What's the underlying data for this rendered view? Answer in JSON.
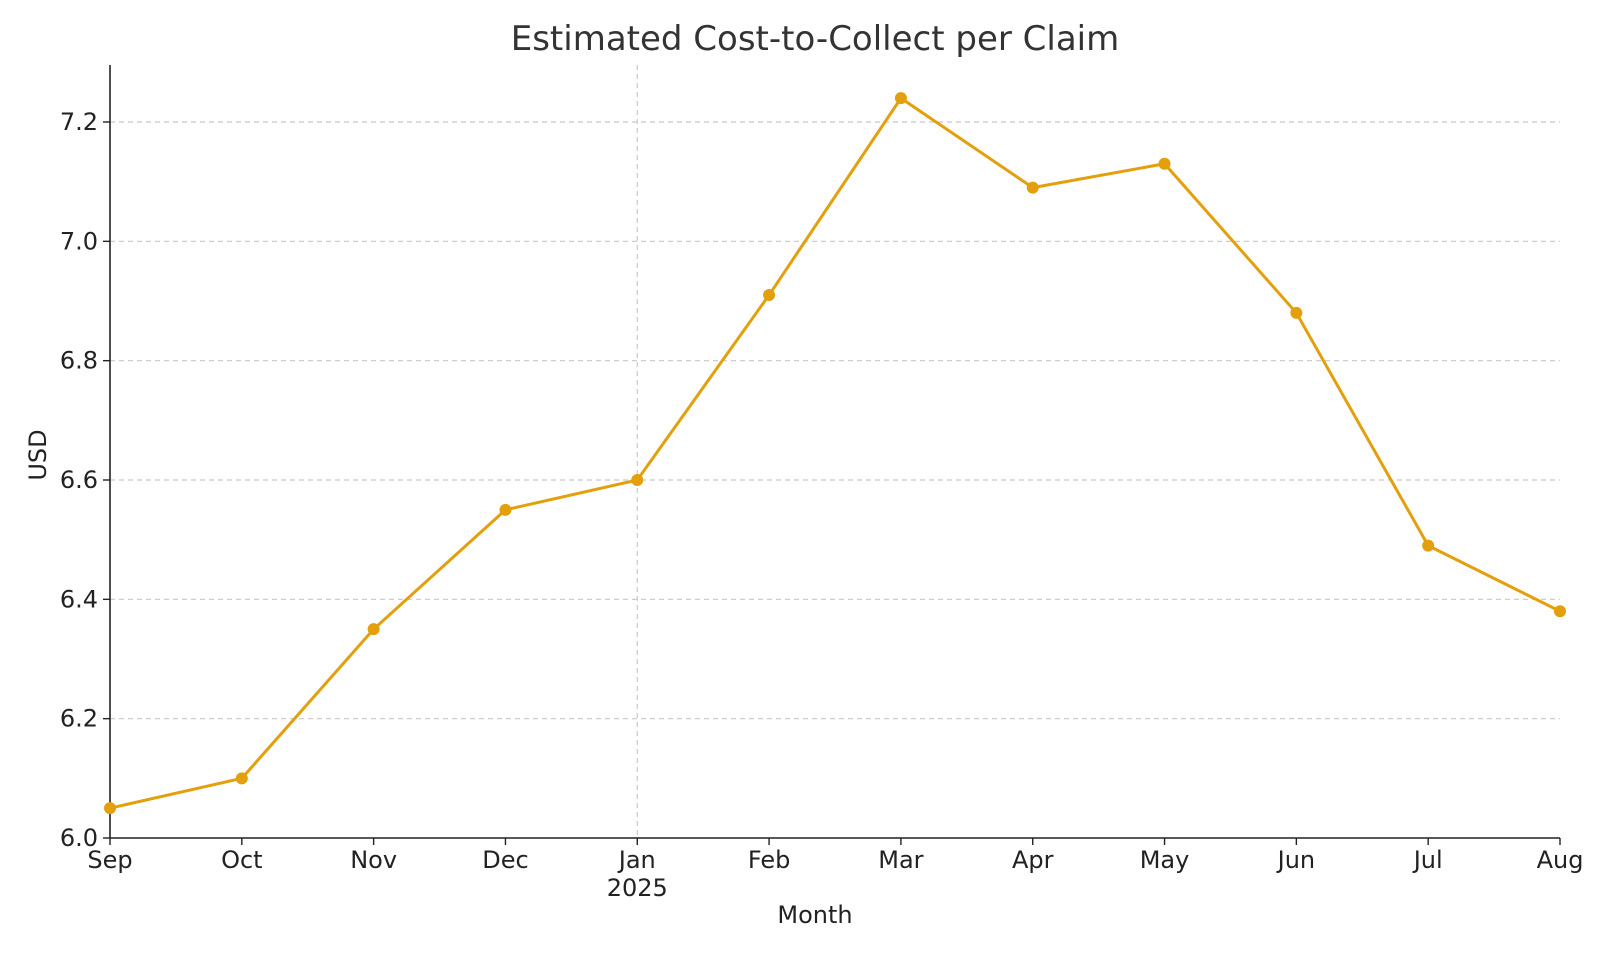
{
  "chart_data": {
    "type": "line",
    "title": "Estimated Cost-to-Collect per Claim",
    "xlabel": "Month",
    "ylabel": "USD",
    "categories": [
      "Sep",
      "Oct",
      "Nov",
      "Dec",
      "Jan",
      "Feb",
      "Mar",
      "Apr",
      "May",
      "Jun",
      "Jul",
      "Aug"
    ],
    "year_marker": {
      "category": "Jan",
      "label": "2025"
    },
    "series": [
      {
        "values": [
          6.05,
          6.1,
          6.35,
          6.55,
          6.6,
          6.91,
          7.24,
          7.09,
          7.13,
          6.88,
          6.49,
          6.38
        ]
      }
    ],
    "ylim": [
      6.0,
      7.3
    ],
    "yticks": [
      6.0,
      6.2,
      6.4,
      6.6,
      6.8,
      7.0,
      7.2
    ],
    "ytick_labels": [
      "6.0",
      "6.2",
      "6.4",
      "6.6",
      "6.8",
      "7.0",
      "7.2"
    ],
    "grid": true,
    "colors": {
      "line": "#e39f0c",
      "marker": "#e39f0c"
    }
  }
}
